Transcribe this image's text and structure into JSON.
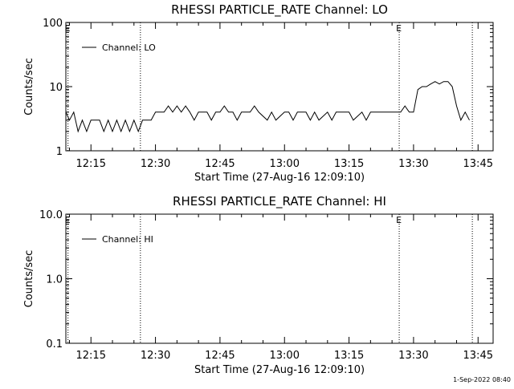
{
  "footer": {
    "timestamp": "1-Sep-2022 08:40"
  },
  "chart_data": [
    {
      "type": "line",
      "title": "RHESSI PARTICLE_RATE Channel: LO",
      "xlabel": "Start Time (27-Aug-16 12:09:10)",
      "ylabel": "Counts/sec",
      "yscale": "log",
      "ylim": [
        1,
        100
      ],
      "xlim": [
        "12:09:10",
        "13:48:30"
      ],
      "y_tick_labels": [
        "1",
        "10",
        "100"
      ],
      "x_tick_labels": [
        "12:15",
        "12:30",
        "12:45",
        "13:00",
        "13:15",
        "13:30",
        "13:45"
      ],
      "markers": [
        {
          "time": "12:09:40",
          "label": "E"
        },
        {
          "time": "12:26:30",
          "label": ""
        },
        {
          "time": "13:26:40",
          "label": "E"
        },
        {
          "time": "13:43:40",
          "label": ""
        }
      ],
      "legend": {
        "position": "top-left",
        "label": "Channel: LO"
      },
      "series": [
        {
          "name": "Channel: LO",
          "x": [
            "12:09:10",
            "12:10:00",
            "12:11:00",
            "12:12:00",
            "12:13:00",
            "12:14:00",
            "12:15:00",
            "12:16:00",
            "12:17:00",
            "12:18:00",
            "12:19:00",
            "12:20:00",
            "12:21:00",
            "12:22:00",
            "12:23:00",
            "12:24:00",
            "12:25:00",
            "12:26:00",
            "12:27:00",
            "12:28:00",
            "12:29:00",
            "12:30:00",
            "12:32:00",
            "12:33:00",
            "12:34:00",
            "12:35:00",
            "12:36:00",
            "12:37:00",
            "12:38:00",
            "12:39:00",
            "12:40:00",
            "12:42:00",
            "12:43:00",
            "12:44:00",
            "12:45:00",
            "12:46:00",
            "12:47:00",
            "12:48:00",
            "12:49:00",
            "12:50:00",
            "12:52:00",
            "12:53:00",
            "12:54:00",
            "12:56:00",
            "12:57:00",
            "12:58:00",
            "13:00:00",
            "13:01:00",
            "13:02:00",
            "13:03:00",
            "13:05:00",
            "13:06:00",
            "13:07:00",
            "13:08:00",
            "13:10:00",
            "13:11:00",
            "13:12:00",
            "13:14:00",
            "13:15:00",
            "13:16:00",
            "13:18:00",
            "13:19:00",
            "13:20:00",
            "13:22:00",
            "13:24:00",
            "13:25:00",
            "13:26:00",
            "13:27:00",
            "13:28:00",
            "13:29:00",
            "13:30:00",
            "13:31:00",
            "13:32:00",
            "13:33:00",
            "13:34:00",
            "13:35:00",
            "13:36:00",
            "13:37:00",
            "13:38:00",
            "13:39:00",
            "13:40:00",
            "13:41:00",
            "13:42:00",
            "13:43:00"
          ],
          "y": [
            4,
            3,
            4,
            2,
            3,
            2,
            3,
            3,
            3,
            2,
            3,
            2,
            3,
            2,
            3,
            2,
            3,
            2,
            3,
            3,
            3,
            4,
            4,
            5,
            4,
            5,
            4,
            5,
            4,
            3,
            4,
            4,
            3,
            4,
            4,
            5,
            4,
            4,
            3,
            4,
            4,
            5,
            4,
            3,
            4,
            3,
            4,
            4,
            3,
            4,
            4,
            3,
            4,
            3,
            4,
            3,
            4,
            4,
            4,
            3,
            4,
            3,
            4,
            4,
            4,
            4,
            4,
            4,
            5,
            4,
            4,
            9,
            10,
            10,
            11,
            12,
            11,
            12,
            12,
            10,
            5,
            3,
            4,
            3
          ]
        }
      ]
    },
    {
      "type": "line",
      "title": "RHESSI PARTICLE_RATE Channel: HI",
      "xlabel": "Start Time (27-Aug-16 12:09:10)",
      "ylabel": "Counts/sec",
      "yscale": "log",
      "ylim": [
        0.1,
        10
      ],
      "xlim": [
        "12:09:10",
        "13:48:30"
      ],
      "y_tick_labels": [
        "0.1",
        "1.0",
        "10.0"
      ],
      "x_tick_labels": [
        "12:15",
        "12:30",
        "12:45",
        "13:00",
        "13:15",
        "13:30",
        "13:45"
      ],
      "markers": [
        {
          "time": "12:09:40",
          "label": "E"
        },
        {
          "time": "12:26:30",
          "label": ""
        },
        {
          "time": "13:26:40",
          "label": "E"
        },
        {
          "time": "13:43:40",
          "label": ""
        }
      ],
      "legend": {
        "position": "top-left",
        "label": "Channel: HI"
      },
      "series": [
        {
          "name": "Channel: HI",
          "x": [],
          "y": []
        }
      ]
    }
  ]
}
